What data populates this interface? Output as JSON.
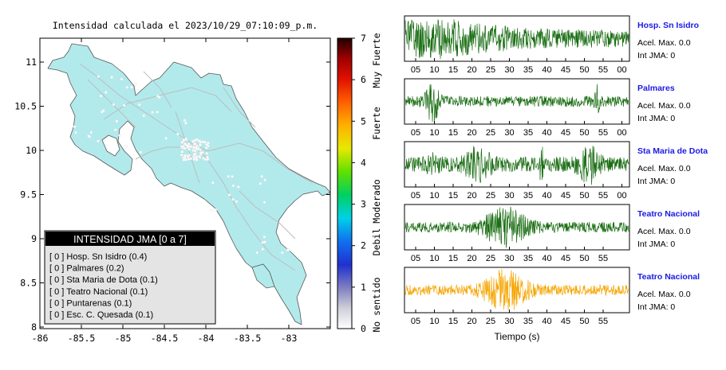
{
  "map": {
    "title": "Intensidad calculada el 2023/10/29_07:10:09_p.m.",
    "x_ticks": [
      "-86",
      "-85.5",
      "-85",
      "-84.5",
      "-84",
      "-83.5",
      "-83"
    ],
    "y_ticks": [
      "11",
      "10.5",
      "10",
      "9.5",
      "9",
      "8.5",
      "8"
    ],
    "legend": {
      "title": "INTENSIDAD JMA [0 a 7]",
      "rows": [
        "[ 0 ]  Hosp. Sn Isidro (0.4)",
        "[ 0 ]  Palmares (0.2)",
        "[ 0 ]  Sta Maria de Dota (0.1)",
        "[ 0 ]  Teatro Nacional (0.1)",
        "[ 0 ]  Puntarenas (0.1)",
        "[ 0 ]  Esc. C. Quesada (0.1)"
      ]
    },
    "colors": {
      "land": "#b2eaec",
      "border": "#555555",
      "roads": "#bbbbbb"
    }
  },
  "colorbar": {
    "ticks": [
      "7",
      "6",
      "5",
      "4",
      "3",
      "2",
      "1",
      "0"
    ],
    "labels": [
      "Muy Fuerte",
      "Fuerte",
      "Moderado",
      "Debil",
      "No sentido"
    ]
  },
  "chart_data": [
    {
      "type": "line",
      "name": "Hosp. Sn Isidro",
      "info": [
        "Acel. Max. 0.0",
        "Int JMA: 0"
      ],
      "color": "#1a6e14",
      "x_ticks": [
        "05",
        "10",
        "15",
        "20",
        "25",
        "30",
        "35",
        "40",
        "45",
        "50",
        "55",
        "00"
      ],
      "amp": 0.75
    },
    {
      "type": "line",
      "name": "Palmares",
      "info": [
        "Acel. Max. 0.0",
        "Int JMA: 0"
      ],
      "color": "#1a6e14",
      "x_ticks": [
        "05",
        "10",
        "15",
        "20",
        "25",
        "30",
        "35",
        "40",
        "45",
        "50",
        "55",
        "00"
      ],
      "amp": 0.22
    },
    {
      "type": "line",
      "name": "Sta Maria de Dota",
      "info": [
        "Acel. Max. 0.0",
        "Int JMA: 0"
      ],
      "color": "#1a6e14",
      "x_ticks": [
        "05",
        "10",
        "15",
        "20",
        "25",
        "30",
        "35",
        "40",
        "45",
        "50",
        "55",
        "00"
      ],
      "amp": 0.3
    },
    {
      "type": "line",
      "name": "Teatro Nacional",
      "info": [
        "Acel. Max. 0.0",
        "Int JMA: 0"
      ],
      "color": "#1a6e14",
      "x_ticks": [
        "05",
        "10",
        "15",
        "20",
        "25",
        "30",
        "35",
        "40",
        "45",
        "50",
        "55"
      ],
      "amp": 0.35
    },
    {
      "type": "line",
      "name": "Teatro Nacional",
      "info": [
        "Acel. Max. 0.0",
        "Int JMA: 0"
      ],
      "color": "#f5a500",
      "x_ticks": [
        "05",
        "10",
        "15",
        "20",
        "25",
        "30",
        "35",
        "40",
        "45",
        "50",
        "55"
      ],
      "xlabel": "Tiempo (s)",
      "amp": 0.35
    }
  ]
}
